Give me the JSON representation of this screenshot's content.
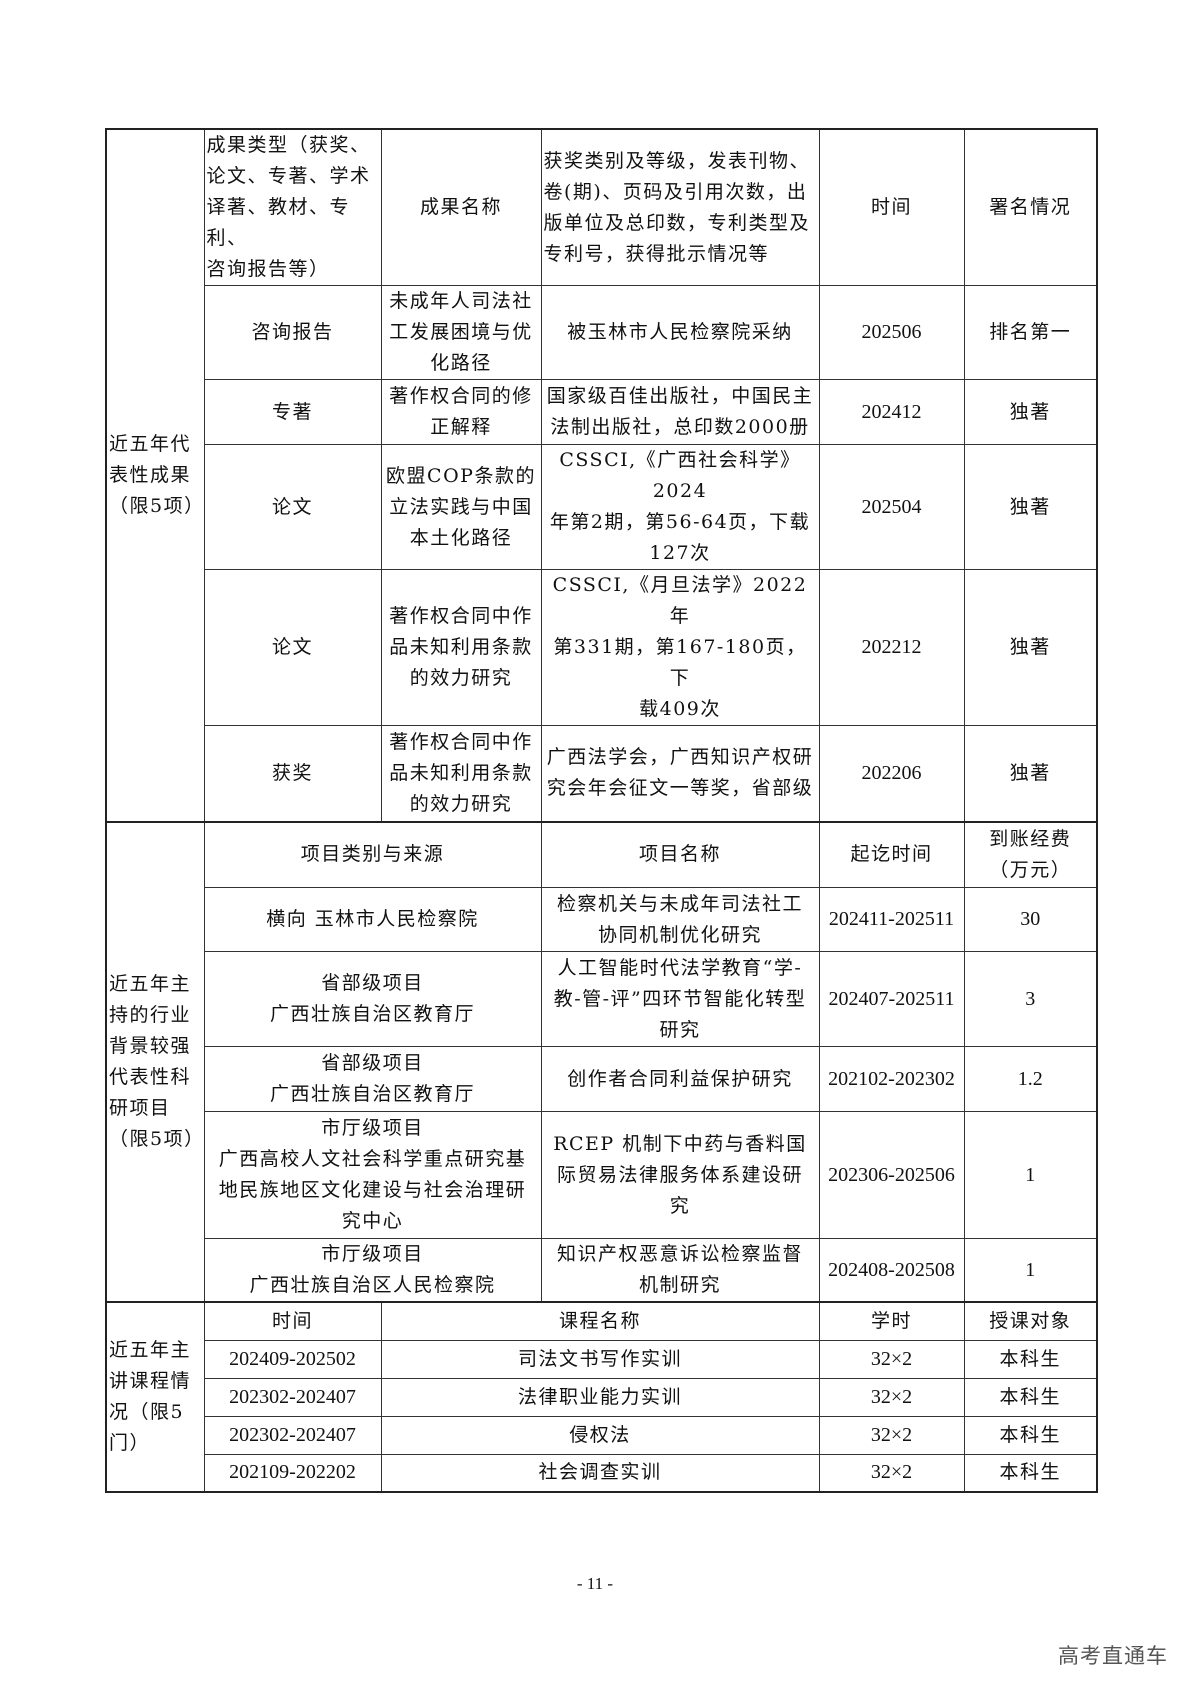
{
  "achievements": {
    "section_label": "近五年代\n表性成果\n（限5项）",
    "headers": [
      "成果类型（获奖、\n论文、专著、学术\n译著、教材、专利、\n咨询报告等）",
      "成果名称",
      "获奖类别及等级，发表刊物、\n卷(期)、页码及引用次数，出\n版单位及总印数，专利类型及\n专利号，获得批示情况等",
      "时间",
      "署名情况"
    ],
    "rows": [
      {
        "type": "咨询报告",
        "name": "未成年人司法社\n工发展困境与优\n化路径",
        "detail": "被玉林市人民检察院采纳",
        "time": "202506",
        "author": "排名第一"
      },
      {
        "type": "专著",
        "name": "著作权合同的修\n正解释",
        "detail": "国家级百佳出版社，中国民主\n法制出版社，总印数2000册",
        "time": "202412",
        "author": "独著"
      },
      {
        "type": "论文",
        "name": "欧盟COP条款的\n立法实践与中国\n本土化路径",
        "detail": "CSSCI,《广西社会科学》2024\n年第2期，第56-64页，下载\n127次",
        "time": "202504",
        "author": "独著"
      },
      {
        "type": "论文",
        "name": "著作权合同中作\n品未知利用条款\n的效力研究",
        "detail": "CSSCI,《月旦法学》2022年\n第331期，第167-180页，下\n载409次",
        "time": "202212",
        "author": "独著"
      },
      {
        "type": "获奖",
        "name": "著作权合同中作\n品未知利用条款\n的效力研究",
        "detail": "广西法学会，广西知识产权研\n究会年会征文一等奖，省部级",
        "time": "202206",
        "author": "独著"
      }
    ]
  },
  "projects": {
    "section_label": "近五年主\n持的行业\n背景较强\n代表性科\n研项目\n（限5项）",
    "headers": [
      "项目类别与来源",
      "项目名称",
      "起讫时间",
      "到账经费\n（万元）"
    ],
    "rows": [
      {
        "source": "横向  玉林市人民检察院",
        "name": "检察机关与未成年司法社工\n协同机制优化研究",
        "period": "202411-202511",
        "funding": "30"
      },
      {
        "source": "省部级项目\n广西壮族自治区教育厅",
        "name": "人工智能时代法学教育“学-\n教-管-评”四环节智能化转型\n研究",
        "period": "202407-202511",
        "funding": "3"
      },
      {
        "source": "省部级项目\n广西壮族自治区教育厅",
        "name": "创作者合同利益保护研究",
        "period": "202102-202302",
        "funding": "1.2"
      },
      {
        "source": "市厅级项目\n广西高校人文社会科学重点研究基\n地民族地区文化建设与社会治理研\n究中心",
        "name": "RCEP 机制下中药与香料国\n际贸易法律服务体系建设研\n究",
        "period": "202306-202506",
        "funding": "1"
      },
      {
        "source": "市厅级项目\n广西壮族自治区人民检察院",
        "name": "知识产权恶意诉讼检察监督\n机制研究",
        "period": "202408-202508",
        "funding": "1"
      }
    ]
  },
  "courses": {
    "section_label": "近五年主\n讲课程情\n况（限5\n门）",
    "headers": [
      "时间",
      "课程名称",
      "学时",
      "授课对象"
    ],
    "rows": [
      {
        "period": "202409-202502",
        "name": "司法文书写作实训",
        "hours": "32×2",
        "audience": "本科生"
      },
      {
        "period": "202302-202407",
        "name": "法律职业能力实训",
        "hours": "32×2",
        "audience": "本科生"
      },
      {
        "period": "202302-202407",
        "name": "侵权法",
        "hours": "32×2",
        "audience": "本科生"
      },
      {
        "period": "202109-202202",
        "name": "社会调查实训",
        "hours": "32×2",
        "audience": "本科生"
      }
    ]
  },
  "page_number": "- 11 -",
  "watermark": "高考直通车"
}
